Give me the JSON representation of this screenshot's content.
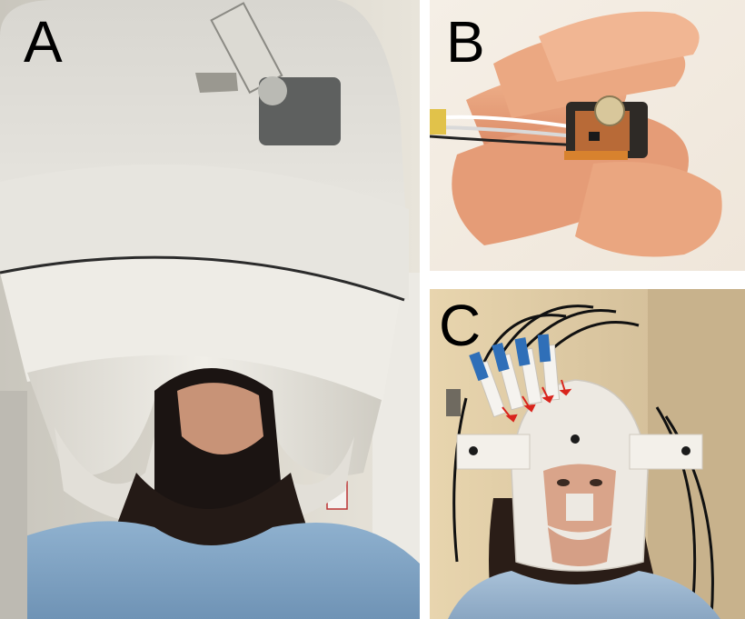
{
  "panels": [
    {
      "id": "A",
      "label": "A",
      "subject": "meg-scanner-helmet-photo"
    },
    {
      "id": "B",
      "label": "B",
      "subject": "opm-sensor-on-fingers-photo"
    },
    {
      "id": "C",
      "label": "C",
      "subject": "3d-printed-sensor-helmet-photo"
    }
  ],
  "colors": {
    "scanner_white": "#e9e7e2",
    "gown_blue": "#9cbcd8",
    "hair_dark": "#1b1412",
    "skin": "#d9a48a",
    "sensor_orange": "#d8822e",
    "arrow_red": "#d9241c",
    "connector_blue": "#2f6fb8"
  }
}
